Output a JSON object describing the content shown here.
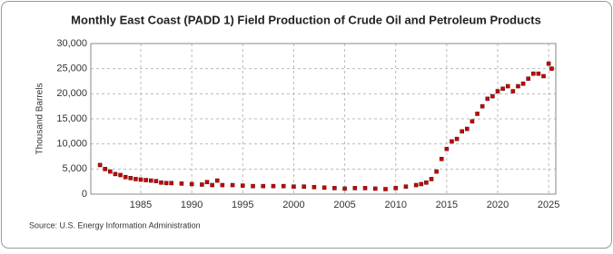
{
  "chart_data": {
    "type": "scatter",
    "title": "Monthly East Coast (PADD 1) Field Production of Crude Oil and Petroleum Products",
    "y_label": "Thousand Barrels",
    "source": "Source: U.S. Energy Information Administration",
    "color": "#cc0000",
    "grid": true,
    "x": [
      1981,
      1981.5,
      1982,
      1982.5,
      1983,
      1983.5,
      1984,
      1984.5,
      1985,
      1985.5,
      1986,
      1986.5,
      1987,
      1987.5,
      1988,
      1989,
      1990,
      1991,
      1991.5,
      1992,
      1992.5,
      1993,
      1994,
      1995,
      1996,
      1997,
      1998,
      1999,
      2000,
      2001,
      2002,
      2003,
      2004,
      2005,
      2006,
      2007,
      2008,
      2009,
      2010,
      2011,
      2012,
      2012.5,
      2013,
      2013.5,
      2014,
      2014.5,
      2015,
      2015.5,
      2016,
      2016.5,
      2017,
      2017.5,
      2018,
      2018.5,
      2019,
      2019.5,
      2020,
      2020.5,
      2021,
      2021.5,
      2022,
      2022.5,
      2023,
      2023.5,
      2024,
      2024.5,
      2025,
      2025.3
    ],
    "values": [
      5800,
      5000,
      4500,
      4000,
      3800,
      3400,
      3200,
      3000,
      2900,
      2800,
      2700,
      2600,
      2300,
      2200,
      2200,
      2100,
      2000,
      1900,
      2400,
      1800,
      2700,
      1800,
      1800,
      1700,
      1600,
      1600,
      1600,
      1600,
      1500,
      1500,
      1400,
      1300,
      1200,
      1100,
      1200,
      1200,
      1100,
      1000,
      1200,
      1500,
      1800,
      2000,
      2300,
      3000,
      4500,
      7000,
      9000,
      10500,
      11000,
      12500,
      13000,
      14500,
      16000,
      17500,
      19000,
      19500,
      20500,
      21000,
      21500,
      20500,
      21500,
      22000,
      23000,
      24000,
      24000,
      23500,
      26000,
      25000
    ],
    "xlim": [
      1980.1,
      2025.7
    ],
    "xticks": [
      1985,
      1990,
      1995,
      2000,
      2005,
      2010,
      2015,
      2020,
      2025
    ],
    "ylim": [
      0,
      30000
    ],
    "yticks": [
      0,
      {
        "value": 5000,
        "label": "5,000"
      },
      {
        "value": 10000,
        "label": "10,000"
      },
      {
        "value": 15000,
        "label": "15,000"
      },
      {
        "value": 20000,
        "label": "20,000"
      },
      {
        "value": 25000,
        "label": "25,000"
      },
      {
        "value": 30000,
        "label": "30,000"
      }
    ]
  }
}
